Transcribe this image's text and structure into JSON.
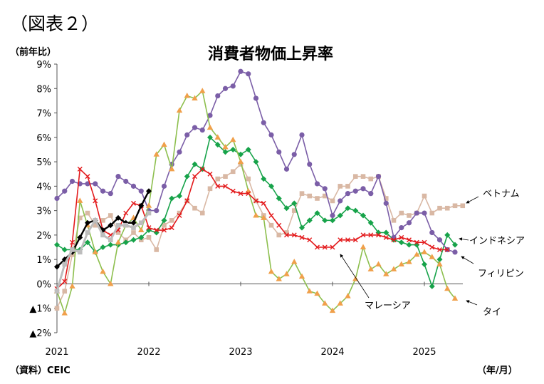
{
  "figure_label": "（図表２）",
  "y_unit": "（前年比）",
  "x_unit": "（年/月）",
  "source": "（資料）CEIC",
  "chart_data": {
    "type": "line",
    "title": "消費者物価上昇率",
    "xlabel": "",
    "ylabel": "",
    "ylim": [
      -2,
      9
    ],
    "yticks": [
      -2,
      -1,
      0,
      1,
      2,
      3,
      4,
      5,
      6,
      7,
      8,
      9
    ],
    "ytick_labels": [
      "▲2%",
      "▲1%",
      "0%",
      "1%",
      "2%",
      "3%",
      "4%",
      "5%",
      "6%",
      "7%",
      "8%",
      "9%"
    ],
    "x_start": "2021-01",
    "xtick_labels": [
      "2021",
      "2022",
      "2023",
      "2024",
      "2025"
    ],
    "grid": false,
    "legend": "labels at line ends",
    "series": [
      {
        "name": "ベトナム",
        "color": "#d9b8a4",
        "marker": "square",
        "values": [
          -1.0,
          -0.3,
          1.2,
          2.7,
          2.9,
          2.4,
          2.6,
          2.8,
          2.1,
          1.8,
          2.1,
          1.8,
          1.9,
          1.4,
          2.4,
          2.6,
          2.9,
          3.4,
          3.1,
          2.9,
          3.9,
          4.3,
          4.4,
          4.6,
          4.9,
          4.3,
          3.4,
          2.8,
          2.4,
          2.0,
          2.1,
          3.0,
          3.7,
          3.6,
          3.5,
          3.6,
          3.4,
          4.0,
          4.0,
          4.4,
          4.4,
          4.3,
          4.4,
          3.5,
          2.6,
          2.9,
          2.8,
          2.9,
          3.6,
          2.9,
          3.1,
          3.1,
          3.2,
          3.2
        ]
      },
      {
        "name": "インドネシア",
        "color": "#17a34a",
        "marker": "diamond",
        "values": [
          1.6,
          1.4,
          1.4,
          1.4,
          1.7,
          1.3,
          1.5,
          1.6,
          1.6,
          1.7,
          1.8,
          1.9,
          2.2,
          2.1,
          2.6,
          3.5,
          3.6,
          4.4,
          4.9,
          4.7,
          6.0,
          5.7,
          5.4,
          5.5,
          5.3,
          5.5,
          5.0,
          4.3,
          4.0,
          3.5,
          3.1,
          3.3,
          2.3,
          2.6,
          2.9,
          2.6,
          2.6,
          2.8,
          3.1,
          3.0,
          2.8,
          2.5,
          2.1,
          2.1,
          1.8,
          1.7,
          1.6,
          1.6,
          0.8,
          -0.1,
          1.0,
          2.0,
          1.6
        ]
      },
      {
        "name": "フィリピン",
        "color": "#7b5ea7",
        "marker": "circle",
        "values": [
          3.5,
          3.8,
          4.2,
          4.1,
          4.1,
          4.1,
          3.8,
          3.7,
          4.4,
          4.2,
          4.0,
          3.8,
          3.0,
          3.0,
          4.0,
          4.9,
          5.4,
          6.1,
          6.4,
          6.3,
          6.9,
          7.7,
          8.0,
          8.1,
          8.7,
          8.6,
          7.6,
          6.6,
          6.1,
          5.4,
          4.7,
          5.3,
          6.1,
          4.9,
          4.1,
          3.9,
          2.8,
          3.4,
          3.7,
          3.8,
          3.9,
          3.7,
          4.4,
          3.3,
          1.9,
          2.3,
          2.5,
          2.9,
          2.9,
          2.1,
          1.8,
          1.4,
          1.3
        ]
      },
      {
        "name": "タイ",
        "color": "#8dbf4e",
        "marker": "triangle",
        "marker_color": "#f0a04b",
        "values": [
          -0.3,
          -1.2,
          -0.1,
          3.4,
          2.4,
          1.3,
          0.5,
          0.0,
          1.7,
          2.4,
          2.7,
          2.2,
          3.2,
          5.3,
          5.7,
          4.7,
          7.1,
          7.7,
          7.6,
          7.9,
          6.4,
          6.0,
          5.6,
          5.9,
          5.0,
          3.8,
          2.8,
          2.7,
          0.5,
          0.2,
          0.4,
          0.9,
          0.3,
          -0.3,
          -0.4,
          -0.8,
          -1.1,
          -0.8,
          -0.5,
          0.2,
          1.5,
          0.6,
          0.8,
          0.4,
          0.6,
          0.8,
          0.9,
          1.2,
          1.3,
          1.1,
          0.8,
          -0.2,
          -0.6
        ]
      },
      {
        "name": "マレーシア",
        "color": "#e31a1c",
        "marker": "cross",
        "values": [
          -0.2,
          0.1,
          1.7,
          4.7,
          4.4,
          3.4,
          2.2,
          2.0,
          2.2,
          2.9,
          3.3,
          3.2,
          2.3,
          2.2,
          2.2,
          2.3,
          2.8,
          3.4,
          4.4,
          4.7,
          4.5,
          4.0,
          4.0,
          3.8,
          3.7,
          3.7,
          3.4,
          3.3,
          2.8,
          2.4,
          2.0,
          2.0,
          1.9,
          1.8,
          1.5,
          1.5,
          1.5,
          1.8,
          1.8,
          1.8,
          2.0,
          2.0,
          2.0,
          1.9,
          1.8,
          1.9,
          1.8,
          1.7,
          1.7,
          1.5,
          1.4,
          1.4
        ]
      },
      {
        "name": "",
        "color": "#000000",
        "marker": "diamond",
        "values": [
          0.7,
          1.0,
          1.3,
          1.9,
          2.5,
          2.6,
          2.2,
          2.4,
          2.7,
          2.5,
          2.5,
          3.2,
          3.8
        ]
      },
      {
        "name": "",
        "color": "#bdbdbd",
        "marker": "square",
        "values": [
          -0.3,
          0.8,
          1.4,
          1.3,
          2.1,
          2.6,
          2.0,
          1.8,
          2.4,
          2.4,
          2.3,
          2.5,
          2.9
        ]
      }
    ],
    "annotations": [
      "ベトナム",
      "インドネシア",
      "フィリピン",
      "マレーシア",
      "タイ"
    ]
  }
}
